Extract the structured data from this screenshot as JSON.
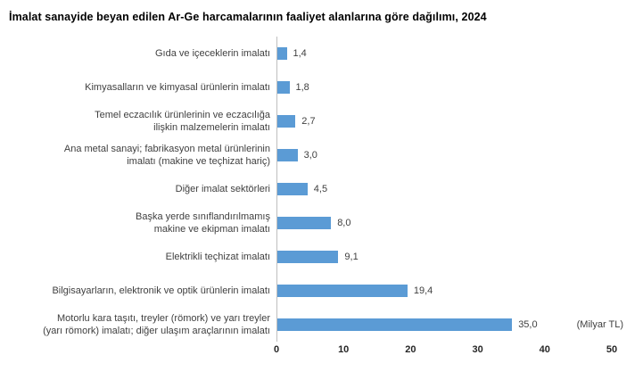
{
  "page": {
    "title": "İmalat sanayide beyan edilen Ar-Ge harcamalarının faaliyet alanlarına göre dağılımı, 2024"
  },
  "chart_data": {
    "type": "bar",
    "orientation": "horizontal",
    "title": "İmalat sanayide beyan edilen Ar-Ge harcamalarının faaliyet alanlarına göre dağılımı, 2024",
    "unit_label": "(Milyar TL)",
    "categories": [
      "Gıda ve içeceklerin imalatı",
      "Kimyasalların ve kimyasal ürünlerin imalatı",
      "Temel eczacılık ürünlerinin ve eczacılığa\nilişkin malzemelerin imalatı",
      "Ana metal sanayi; fabrikasyon metal ürünlerinin\nimalatı (makine ve teçhizat hariç)",
      "Diğer imalat sektörleri",
      "Başka yerde sınıflandırılmamış\nmakine ve ekipman imalatı",
      "Elektrikli teçhizat imalatı",
      "Bilgisayarların, elektronik ve optik ürünlerin imalatı",
      "Motorlu kara taşıtı, treyler (römork) ve yarı treyler\n(yarı römork) imalatı; diğer ulaşım araçlarının imalatı"
    ],
    "values": [
      1.4,
      1.8,
      2.7,
      3.0,
      4.5,
      8.0,
      9.1,
      19.4,
      35.0
    ],
    "value_labels": [
      "1,4",
      "1,8",
      "2,7",
      "3,0",
      "4,5",
      "8,0",
      "9,1",
      "19,4",
      "35,0"
    ],
    "x_tick_labels": [
      "0",
      "10",
      "20",
      "30",
      "40",
      "50"
    ],
    "x_ticks": [
      0,
      10,
      20,
      30,
      40,
      50
    ],
    "xlim": [
      0,
      50
    ],
    "xlabel": "(Milyar TL)",
    "grid": false,
    "legend_position": "none",
    "bar_color": "#5B9BD5",
    "axis_line_color": "#BFBFBF"
  }
}
